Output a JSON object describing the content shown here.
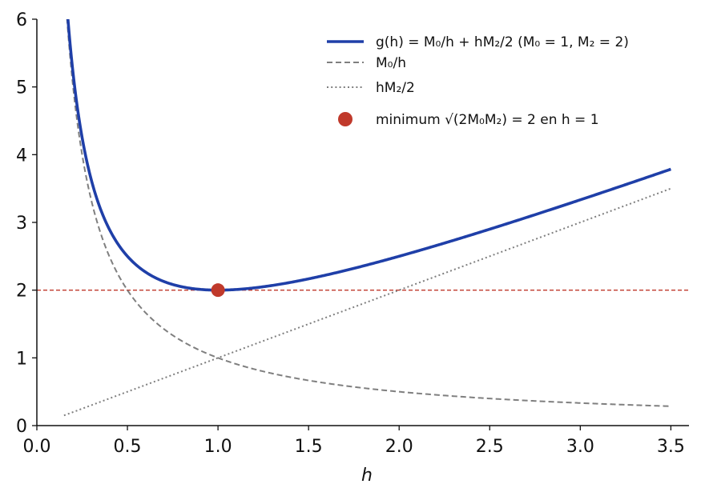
{
  "chart_data": {
    "type": "line",
    "title": "",
    "xlabel": "h",
    "ylabel": "",
    "xlim": [
      0.0,
      3.6
    ],
    "ylim": [
      0,
      6
    ],
    "x_ticks": [
      "0.0",
      "0.5",
      "1.0",
      "1.5",
      "2.0",
      "2.5",
      "3.0",
      "3.5"
    ],
    "y_ticks": [
      "0",
      "1",
      "2",
      "3",
      "4",
      "5",
      "6"
    ],
    "grid": false,
    "legend_position": "top-right",
    "x_range": [
      0.15,
      3.5
    ],
    "series": [
      {
        "name": "g(h) = M₀/h + hM₂/2 (M₀ = 1, M₂ = 2)",
        "formula": "1/h + h",
        "style": "solid",
        "color": "#1f3fa8"
      },
      {
        "name": "M₀/h",
        "formula": "1/h",
        "style": "dashed",
        "color": "#7f7f7f"
      },
      {
        "name": "hM₂/2",
        "formula": "h",
        "style": "dotted",
        "color": "#7f7f7f"
      }
    ],
    "points": [
      {
        "name": "minimum √(2M₀M₂) = 2 en h = 1",
        "x": 1,
        "y": 2,
        "color": "#c0392b"
      }
    ],
    "reference_lines": [
      {
        "axis": "y",
        "value": 2,
        "style": "dashed",
        "color": "#c0392b"
      }
    ]
  }
}
